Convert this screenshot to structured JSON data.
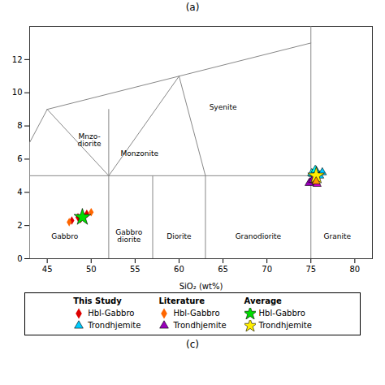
{
  "chart_data": {
    "type": "scatter",
    "xlabel": "SiO₂ (wt%)",
    "ylabel": null,
    "xlim": [
      43,
      82
    ],
    "ylim": [
      0,
      14
    ],
    "xticks": [
      45,
      50,
      55,
      60,
      65,
      70,
      75,
      80
    ],
    "yticks": [
      0,
      2,
      4,
      6,
      8,
      10,
      12
    ],
    "legend": "bottom",
    "panel_labels": [
      "(a)",
      "(c)"
    ],
    "boundary_color": "#888888",
    "boundary_lines": [
      {
        "x": [
          43,
          82
        ],
        "y": [
          0,
          0
        ]
      },
      {
        "x": [
          43,
          43
        ],
        "y": [
          0,
          7
        ]
      },
      {
        "x": [
          43,
          45
        ],
        "y": [
          7,
          9
        ]
      },
      {
        "x": [
          45,
          52
        ],
        "y": [
          9,
          5
        ]
      },
      {
        "x": [
          52,
          52
        ],
        "y": [
          0,
          9
        ]
      },
      {
        "x": [
          45,
          60
        ],
        "y": [
          9,
          11
        ]
      },
      {
        "x": [
          60,
          75
        ],
        "y": [
          11,
          13
        ]
      },
      {
        "x": [
          60,
          63
        ],
        "y": [
          11,
          5
        ]
      },
      {
        "x": [
          52,
          60
        ],
        "y": [
          5,
          11
        ]
      },
      {
        "x": [
          57,
          57
        ],
        "y": [
          0,
          5
        ]
      },
      {
        "x": [
          63,
          63
        ],
        "y": [
          0,
          5
        ]
      },
      {
        "x": [
          75,
          75
        ],
        "y": [
          0,
          14
        ]
      },
      {
        "x": [
          43,
          75
        ],
        "y": [
          5,
          5
        ]
      }
    ],
    "annotations": [
      {
        "text": "Gabbro",
        "x": 47.0,
        "y": 1.2
      },
      {
        "text": "Gabbro\ndiorite",
        "x": 54.3,
        "y": 1.0
      },
      {
        "text": "Diorite",
        "x": 60.0,
        "y": 1.2
      },
      {
        "text": "Granodiorite",
        "x": 69.0,
        "y": 1.2
      },
      {
        "text": "Granite",
        "x": 78.0,
        "y": 1.2
      },
      {
        "text": "Monzonite",
        "x": 55.5,
        "y": 6.2
      },
      {
        "text": "Syenite",
        "x": 65.0,
        "y": 9.0
      },
      {
        "text": "Mnzo-\ndiorite",
        "x": 49.8,
        "y": 6.8
      }
    ],
    "series": [
      {
        "group": "This Study",
        "name": "Hbl-Gabbro",
        "color": "#dd0000",
        "marker": "diamond",
        "values": [
          [
            47.8,
            2.3
          ],
          [
            48.5,
            2.5
          ],
          [
            49.0,
            2.6
          ],
          [
            49.5,
            2.7
          ],
          [
            48.8,
            2.4
          ]
        ]
      },
      {
        "group": "This Study",
        "name": "Trondhjemite",
        "color": "#00ccff",
        "marker": "triangle",
        "values": [
          [
            75.2,
            5.1
          ],
          [
            75.6,
            5.3
          ],
          [
            76.0,
            5.0
          ],
          [
            76.3,
            5.2
          ]
        ]
      },
      {
        "group": "This Study",
        "color": "#cc00cc",
        "marker": "triangle",
        "values": [
          [
            74.9,
            4.6
          ],
          [
            75.3,
            4.8
          ],
          [
            75.7,
            4.5
          ]
        ]
      },
      {
        "group": "Literature",
        "name": "Hbl-Gabbro",
        "color": "#ff6600",
        "marker": "diamond",
        "values": [
          [
            47.5,
            2.2
          ],
          [
            50.0,
            2.8
          ]
        ]
      },
      {
        "group": "Literature",
        "color": "#00ffff",
        "marker": "triangle",
        "values": [
          [
            75.1,
            5.15
          ],
          [
            75.5,
            5.35
          ]
        ]
      },
      {
        "group": "Literature",
        "name": "Trondhjemite",
        "color": "#9900bb",
        "marker": "triangle",
        "values": [
          [
            74.8,
            4.55
          ],
          [
            75.2,
            4.75
          ]
        ]
      },
      {
        "group": "Average",
        "name": "Hbl-Gabbro",
        "color": "#00dd00",
        "marker": "star",
        "values": [
          [
            49.0,
            2.5
          ]
        ]
      },
      {
        "group": "Average",
        "name": "Trondhjemite",
        "color": "#ffee00",
        "marker": "star",
        "values": [
          [
            75.6,
            5.0
          ]
        ]
      },
      {
        "group": "Average",
        "color": "#ff9900",
        "marker": "triangle",
        "values": [
          [
            75.6,
            4.65
          ]
        ]
      }
    ]
  }
}
